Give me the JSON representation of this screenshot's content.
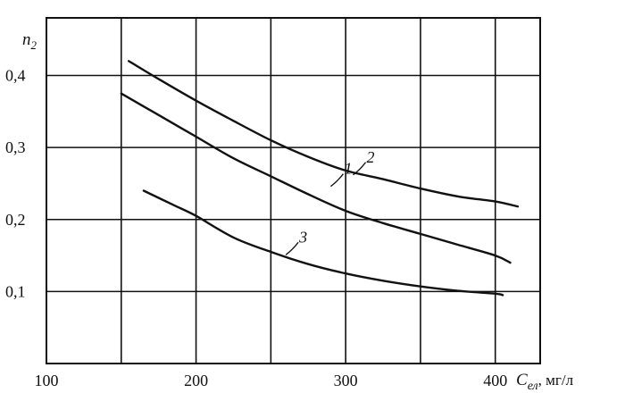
{
  "chart_data": {
    "type": "line",
    "xlabel": "C",
    "xlabel_sub": "ел",
    "xlabel_unit": ", мг/л",
    "ylabel": "n",
    "ylabel_sub": "2",
    "xlim": [
      100,
      430
    ],
    "ylim": [
      0.0,
      0.48
    ],
    "x_ticks": [
      100,
      200,
      300,
      400
    ],
    "x_tick_labels": [
      "100",
      "200",
      "300",
      "400"
    ],
    "x_grid": [
      150,
      200,
      250,
      300,
      350,
      400
    ],
    "y_ticks": [
      0.1,
      0.2,
      0.3,
      0.4
    ],
    "y_tick_labels": [
      "0,1",
      "0,2",
      "0,3",
      "0,4"
    ],
    "grid": true,
    "series": [
      {
        "name": "1",
        "x": [
          150,
          175,
          200,
          225,
          250,
          275,
          300,
          325,
          350,
          375,
          400,
          410
        ],
        "y": [
          0.375,
          0.345,
          0.315,
          0.285,
          0.26,
          0.235,
          0.212,
          0.195,
          0.18,
          0.165,
          0.15,
          0.14
        ]
      },
      {
        "name": "2",
        "x": [
          155,
          175,
          200,
          225,
          250,
          275,
          300,
          325,
          350,
          375,
          400,
          415
        ],
        "y": [
          0.42,
          0.395,
          0.365,
          0.337,
          0.31,
          0.287,
          0.268,
          0.256,
          0.243,
          0.232,
          0.225,
          0.218
        ]
      },
      {
        "name": "3",
        "x": [
          165,
          185,
          200,
          225,
          250,
          275,
          300,
          325,
          350,
          375,
          400,
          405
        ],
        "y": [
          0.24,
          0.22,
          0.205,
          0.175,
          0.155,
          0.138,
          0.125,
          0.115,
          0.107,
          0.101,
          0.097,
          0.095
        ]
      }
    ],
    "series_labels": [
      {
        "series": "1",
        "text": "1",
        "anchor_x": 290,
        "anchor_y": 0.246
      },
      {
        "series": "2",
        "text": "2",
        "anchor_x": 305,
        "anchor_y": 0.262
      },
      {
        "series": "3",
        "text": "3",
        "anchor_x": 260,
        "anchor_y": 0.151
      }
    ]
  }
}
